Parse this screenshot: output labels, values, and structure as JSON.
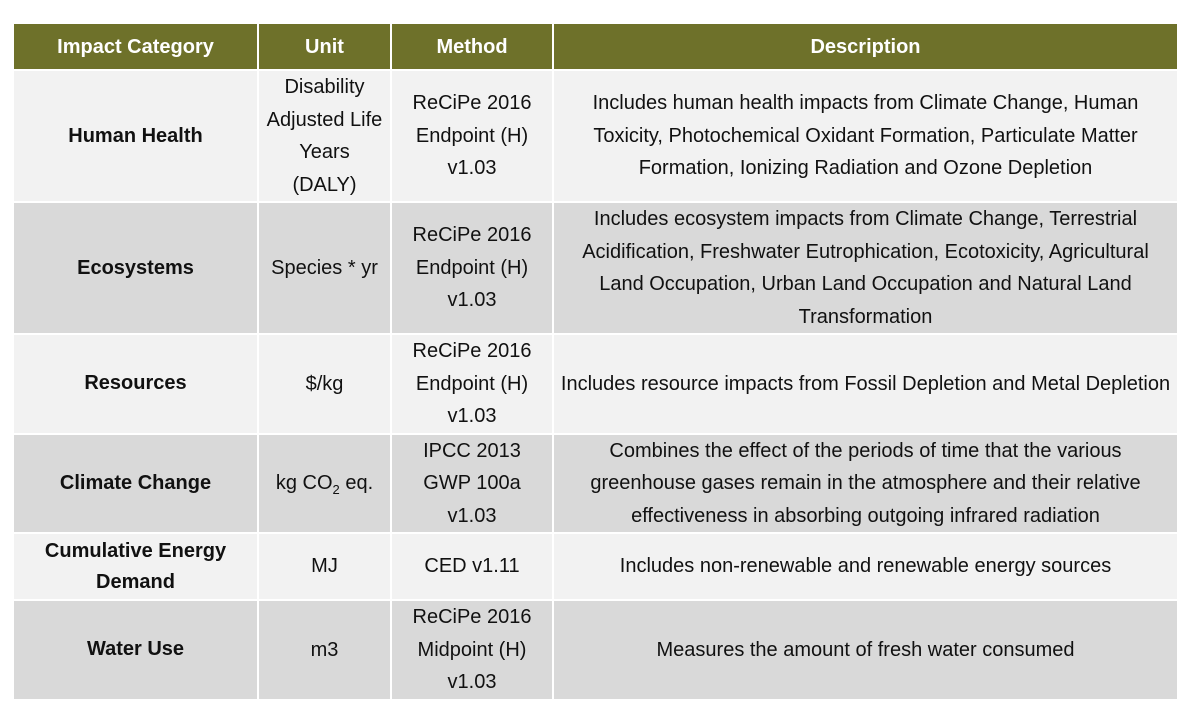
{
  "table": {
    "headers": [
      "Impact Category",
      "Unit",
      "Method",
      "Description"
    ],
    "rows": [
      {
        "category": "Human Health",
        "unit": "Disability Adjusted Life Years (DALY)",
        "method": "ReCiPe 2016 Endpoint (H) v1.03",
        "description": "Includes human health impacts from Climate Change, Human Toxicity, Photochemical Oxidant Formation, Particulate Matter Formation, Ionizing Radiation and Ozone Depletion"
      },
      {
        "category": "Ecosystems",
        "unit": "Species * yr",
        "method": "ReCiPe 2016 Endpoint (H) v1.03",
        "description": "Includes ecosystem impacts from Climate Change, Terrestrial Acidification, Freshwater Eutrophication, Ecotoxicity, Agricultural Land Occupation, Urban Land Occupation and Natural Land Transformation"
      },
      {
        "category": "Resources",
        "unit": "$/kg",
        "method": "ReCiPe 2016 Endpoint (H) v1.03",
        "description": "Includes resource impacts from Fossil Depletion and Metal Depletion"
      },
      {
        "category": "Climate Change",
        "unit_prefix": "kg CO",
        "unit_sub": "2",
        "unit_suffix": " eq.",
        "method": "IPCC 2013 GWP 100a v1.03",
        "description": "Combines the effect of the periods of time that the various greenhouse gases remain in the atmosphere and their relative effectiveness in absorbing outgoing infrared radiation"
      },
      {
        "category": "Cumulative Energy Demand",
        "unit": "MJ",
        "method": "CED v1.11",
        "description": "Includes non-renewable and renewable energy sources"
      },
      {
        "category": "Water Use",
        "unit": "m3",
        "method": "ReCiPe 2016 Midpoint (H) v1.03",
        "description": "Measures the amount of fresh water consumed"
      }
    ]
  },
  "colors": {
    "header_bg": "#6e712a",
    "header_text": "#ffffff",
    "row_light": "#f2f2f2",
    "row_dark": "#d9d9d9"
  }
}
